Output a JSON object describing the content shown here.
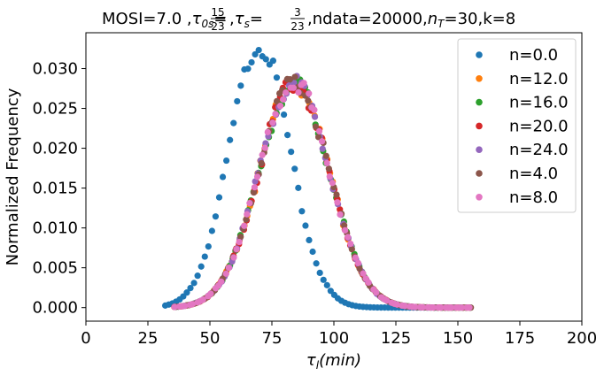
{
  "chart_data": {
    "type": "scatter",
    "title": {
      "prefix": "MOSI=7.0 ,",
      "tau0s_num": "15",
      "tau0s_den": "23",
      "taus_num": "3",
      "taus_den": "23",
      "suffix": ",ndata=20000,",
      "nT_value": "=30,k=8"
    },
    "ylabel": "Normalized Frequency",
    "xlim": [
      0,
      200
    ],
    "ylim": [
      -0.0017,
      0.0345
    ],
    "xticks": [
      0,
      25,
      50,
      75,
      100,
      125,
      150,
      175,
      200
    ],
    "yticks": [
      0.0,
      0.005,
      0.01,
      0.015,
      0.02,
      0.025,
      0.03
    ],
    "ytick_labels": [
      "0.000",
      "0.005",
      "0.010",
      "0.015",
      "0.020",
      "0.025",
      "0.030"
    ],
    "grid": false,
    "legend_position": "top-right",
    "series": [
      {
        "name": "n=0.0",
        "color": "#1f77b4",
        "mu": 70,
        "sigma": 12.2,
        "peak": 0.033,
        "xmin": 32,
        "xmax": 146,
        "step": 1.45
      },
      {
        "name": "n=12.0",
        "color": "#ff7f0e",
        "mu": 84,
        "sigma": 14.2,
        "peak": 0.0282,
        "xmin": 36,
        "xmax": 155,
        "step": 1.45
      },
      {
        "name": "n=16.0",
        "color": "#2ca02c",
        "mu": 84,
        "sigma": 14.2,
        "peak": 0.0282,
        "xmin": 36,
        "xmax": 155,
        "step": 1.45
      },
      {
        "name": "n=20.0",
        "color": "#d62728",
        "mu": 84,
        "sigma": 14.2,
        "peak": 0.0282,
        "xmin": 36,
        "xmax": 155,
        "step": 1.45
      },
      {
        "name": "n=24.0",
        "color": "#9467bd",
        "mu": 84,
        "sigma": 14.2,
        "peak": 0.0282,
        "xmin": 36,
        "xmax": 155,
        "step": 1.45
      },
      {
        "name": "n=4.0",
        "color": "#8c564b",
        "mu": 84,
        "sigma": 14.2,
        "peak": 0.0282,
        "xmin": 36,
        "xmax": 155,
        "step": 1.45
      },
      {
        "name": "n=8.0",
        "color": "#e377c2",
        "mu": 84,
        "sigma": 14.2,
        "peak": 0.0282,
        "xmin": 36,
        "xmax": 155,
        "step": 1.45
      }
    ]
  }
}
